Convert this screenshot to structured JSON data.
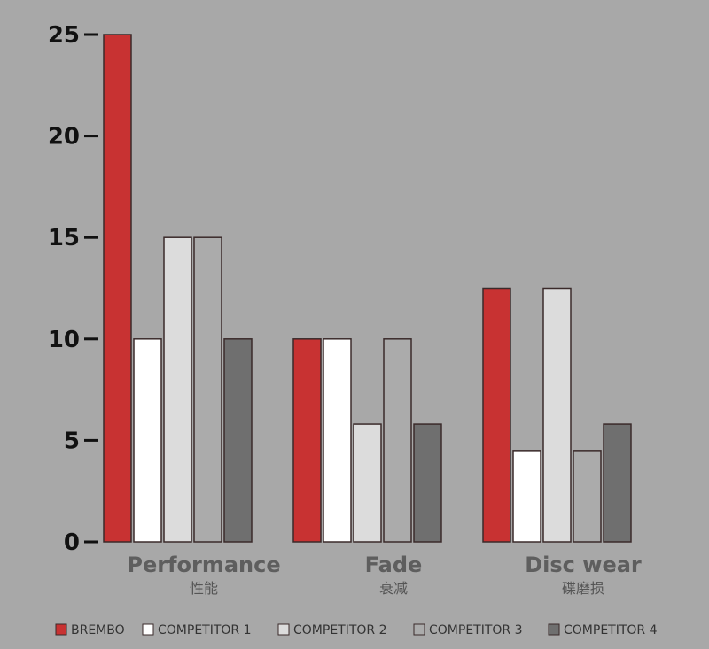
{
  "chart_data": {
    "type": "bar",
    "categories": [
      "Performance",
      "Fade",
      "Disc wear"
    ],
    "category_labels_zh": [
      "性能",
      "衰减",
      "碟磨损"
    ],
    "series": [
      {
        "name": "BREMBO",
        "color": "#c83232",
        "values": [
          25,
          10,
          12.5
        ]
      },
      {
        "name": "COMPETITOR 1",
        "color": "#ffffff",
        "values": [
          10,
          10,
          4.5
        ]
      },
      {
        "name": "COMPETITOR 2",
        "color": "#dcdcdc",
        "values": [
          15,
          5.8,
          12.5
        ]
      },
      {
        "name": "COMPETITOR 3",
        "color": "#ababab",
        "values": [
          15,
          10,
          4.5
        ]
      },
      {
        "name": "COMPETITOR 4",
        "color": "#6f6f6f",
        "values": [
          10,
          5.8,
          5.8
        ]
      }
    ],
    "ylim": [
      0,
      25
    ],
    "yticks": [
      0,
      5,
      10,
      15,
      20,
      25
    ],
    "legend": "bottom"
  }
}
